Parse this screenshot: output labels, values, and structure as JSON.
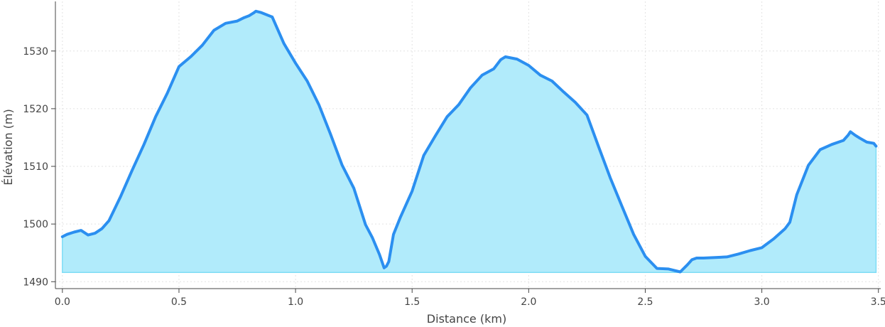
{
  "chart_data": {
    "type": "area",
    "xlabel": "Distance (km)",
    "ylabel": "Élévation (m)",
    "xlim": [
      -0.03,
      3.51
    ],
    "ylim": [
      1488.8,
      1538.6
    ],
    "baseline": 1491.6,
    "grid": true,
    "colors": {
      "line": "#2b8ff0",
      "fill": "#b1ebfb",
      "fill_edge": "#7fdcf5",
      "grid": "#e3e3e3",
      "axis": "#444444"
    },
    "xticks": [
      0.0,
      0.5,
      1.0,
      1.5,
      2.0,
      2.5,
      3.0,
      3.5
    ],
    "xtick_labels": [
      "0.0",
      "0.5",
      "1.0",
      "1.5",
      "2.0",
      "2.5",
      "3.0",
      "3.5"
    ],
    "yticks": [
      1490,
      1500,
      1510,
      1520,
      1530
    ],
    "ytick_labels": [
      "1490",
      "1500",
      "1510",
      "1520",
      "1530"
    ],
    "series": [
      {
        "x": [
          0.0,
          0.02,
          0.05,
          0.08,
          0.11,
          0.14,
          0.17,
          0.2,
          0.25,
          0.3,
          0.35,
          0.4,
          0.45,
          0.5,
          0.55,
          0.6,
          0.65,
          0.7,
          0.75,
          0.78,
          0.8,
          0.82,
          0.83,
          0.85,
          0.9,
          0.95,
          1.0,
          1.05,
          1.1,
          1.15,
          1.2,
          1.25,
          1.3,
          1.33,
          1.36,
          1.38,
          1.39,
          1.4,
          1.42,
          1.45,
          1.5,
          1.55,
          1.6,
          1.65,
          1.7,
          1.75,
          1.8,
          1.85,
          1.88,
          1.9,
          1.95,
          2.0,
          2.05,
          2.1,
          2.15,
          2.2,
          2.25,
          2.3,
          2.35,
          2.4,
          2.45,
          2.5,
          2.55,
          2.6,
          2.65,
          2.68,
          2.7,
          2.72,
          2.75,
          2.8,
          2.85,
          2.9,
          2.95,
          3.0,
          3.05,
          3.1,
          3.12,
          3.15,
          3.2,
          3.25,
          3.3,
          3.35,
          3.37,
          3.38,
          3.4,
          3.42,
          3.45,
          3.48,
          3.49
        ],
        "values": [
          1497.8,
          1498.2,
          1498.6,
          1498.9,
          1498.1,
          1498.4,
          1499.2,
          1500.6,
          1504.8,
          1509.4,
          1513.8,
          1518.6,
          1522.7,
          1527.3,
          1529.0,
          1531.0,
          1533.6,
          1534.8,
          1535.2,
          1535.8,
          1536.1,
          1536.6,
          1536.9,
          1536.7,
          1535.9,
          1531.3,
          1527.9,
          1524.8,
          1520.7,
          1515.6,
          1510.2,
          1506.2,
          1499.9,
          1497.6,
          1494.7,
          1492.4,
          1492.7,
          1493.5,
          1498.2,
          1501.2,
          1505.7,
          1511.9,
          1515.3,
          1518.6,
          1520.7,
          1523.6,
          1525.8,
          1526.9,
          1528.5,
          1529.0,
          1528.6,
          1527.5,
          1525.8,
          1524.8,
          1522.9,
          1521.1,
          1518.9,
          1513.4,
          1508.0,
          1503.1,
          1498.2,
          1494.4,
          1492.3,
          1492.2,
          1491.7,
          1492.9,
          1493.8,
          1494.1,
          1494.1,
          1494.2,
          1494.3,
          1494.8,
          1495.4,
          1495.9,
          1497.4,
          1499.2,
          1500.3,
          1505.1,
          1510.2,
          1512.9,
          1513.8,
          1514.5,
          1515.4,
          1516.0,
          1515.4,
          1514.9,
          1514.2,
          1514.0,
          1513.5
        ]
      }
    ]
  }
}
